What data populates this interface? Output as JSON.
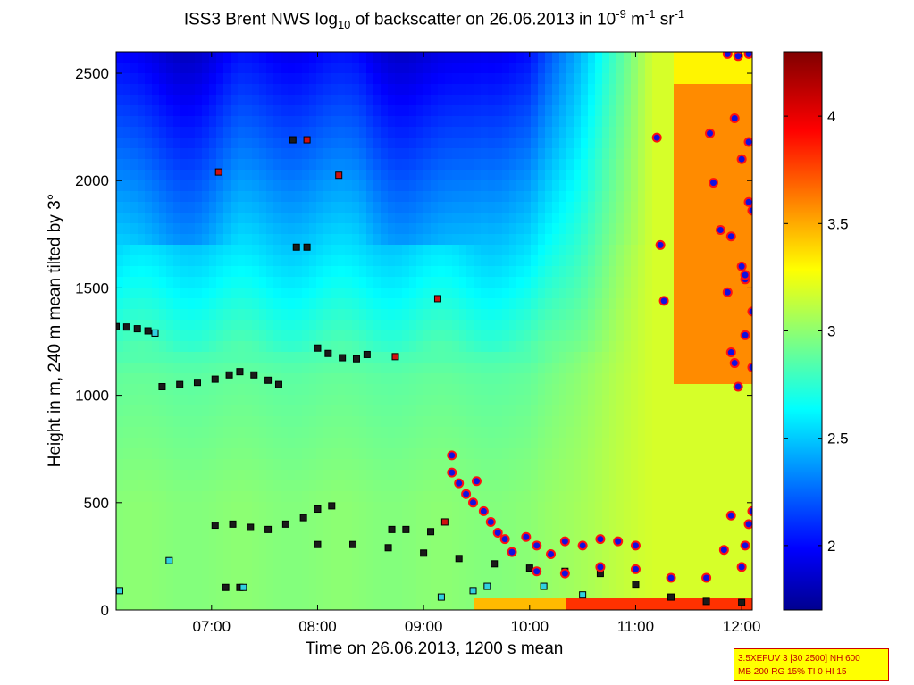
{
  "title": {
    "prefix": "ISS3 Brent NWS log",
    "sub": "10",
    "mid": " of backscatter on 26.06.2013 in 10",
    "sup1": "-9",
    "mid2": " m",
    "sup2": "-1",
    "mid3": " sr",
    "sup3": "-1"
  },
  "info_box": {
    "line1": "3.5XEFUV 3 [30 2500] NH 600",
    "line2": "MB 200 RG 15% TI 0 HI 15"
  },
  "chart_data": {
    "type": "heatmap",
    "xlabel": "Time on 26.06.2013, 1200 s mean",
    "ylabel": "Height in m, 240 m mean tilted by 3°",
    "xlim": [
      "06:06",
      "12:06"
    ],
    "ylim": [
      0,
      2600
    ],
    "x_ticks": [
      "07:00",
      "08:00",
      "09:00",
      "10:00",
      "11:00",
      "12:00"
    ],
    "y_ticks": [
      0,
      500,
      1000,
      1500,
      2000,
      2500
    ],
    "colorbar": {
      "range": [
        1.7,
        4.3
      ],
      "ticks": [
        2,
        2.5,
        3,
        3.5,
        4
      ],
      "colormap": "jet",
      "colors": [
        "#00008f",
        "#0000ff",
        "#00ffff",
        "#ffff00",
        "#ff0000",
        "#800000"
      ]
    },
    "field_description": "log10 backscatter: low (1.9-2.3) above 1500 m before 10:30, ~2.9 near 1000 m, ~3.2 from 10:30, ~3.6 above 1000 m after 11:20",
    "series": [
      {
        "marker": "square-dark",
        "points": [
          [
            "06:06",
            1320
          ],
          [
            "06:12",
            1318
          ],
          [
            "06:18",
            1310
          ],
          [
            "06:24",
            1300
          ],
          [
            "06:28",
            1290
          ],
          [
            "06:32",
            1040
          ],
          [
            "06:42",
            1050
          ],
          [
            "06:52",
            1060
          ],
          [
            "07:02",
            1075
          ],
          [
            "07:10",
            1095
          ],
          [
            "07:16",
            1110
          ],
          [
            "07:24",
            1095
          ],
          [
            "07:32",
            1070
          ],
          [
            "07:38",
            1050
          ],
          [
            "07:02",
            395
          ],
          [
            "07:12",
            400
          ],
          [
            "07:22",
            385
          ],
          [
            "07:32",
            375
          ],
          [
            "07:42",
            400
          ],
          [
            "07:52",
            430
          ],
          [
            "08:00",
            470
          ],
          [
            "08:08",
            485
          ],
          [
            "08:00",
            1220
          ],
          [
            "08:06",
            1195
          ],
          [
            "08:14",
            1175
          ],
          [
            "08:22",
            1170
          ],
          [
            "08:28",
            1190
          ],
          [
            "08:00",
            305
          ],
          [
            "08:20",
            305
          ],
          [
            "08:40",
            290
          ],
          [
            "09:00",
            265
          ],
          [
            "09:20",
            240
          ],
          [
            "09:40",
            215
          ],
          [
            "10:00",
            195
          ],
          [
            "10:20",
            180
          ],
          [
            "10:40",
            170
          ],
          [
            "11:00",
            120
          ],
          [
            "11:20",
            60
          ],
          [
            "11:40",
            40
          ],
          [
            "12:00",
            35
          ],
          [
            "08:42",
            375
          ],
          [
            "08:50",
            375
          ],
          [
            "09:04",
            365
          ],
          [
            "07:08",
            105
          ],
          [
            "07:16",
            105
          ],
          [
            "07:48",
            1690
          ],
          [
            "07:54",
            1690
          ],
          [
            "07:46",
            2190
          ]
        ]
      },
      {
        "marker": "square-red",
        "points": [
          [
            "07:04",
            2040
          ],
          [
            "07:54",
            2190
          ],
          [
            "08:12",
            2025
          ],
          [
            "09:08",
            1450
          ],
          [
            "08:44",
            1180
          ],
          [
            "09:12",
            410
          ]
        ]
      },
      {
        "marker": "square-cyan",
        "points": [
          [
            "06:08",
            90
          ],
          [
            "06:28",
            1290
          ],
          [
            "06:36",
            230
          ],
          [
            "07:18",
            105
          ],
          [
            "09:10",
            60
          ],
          [
            "09:28",
            90
          ],
          [
            "09:36",
            110
          ],
          [
            "10:08",
            110
          ],
          [
            "10:30",
            70
          ]
        ]
      },
      {
        "marker": "circle-blue-red",
        "points": [
          [
            "09:16",
            720
          ],
          [
            "09:16",
            640
          ],
          [
            "09:20",
            590
          ],
          [
            "09:24",
            540
          ],
          [
            "09:28",
            500
          ],
          [
            "09:30",
            600
          ],
          [
            "09:34",
            460
          ],
          [
            "09:38",
            410
          ],
          [
            "09:42",
            360
          ],
          [
            "09:46",
            330
          ],
          [
            "09:50",
            270
          ],
          [
            "09:58",
            340
          ],
          [
            "10:04",
            300
          ],
          [
            "10:12",
            260
          ],
          [
            "10:20",
            320
          ],
          [
            "10:30",
            300
          ],
          [
            "10:40",
            330
          ],
          [
            "10:50",
            320
          ],
          [
            "11:00",
            300
          ],
          [
            "10:04",
            180
          ],
          [
            "10:20",
            170
          ],
          [
            "10:40",
            200
          ],
          [
            "11:00",
            190
          ],
          [
            "11:20",
            150
          ],
          [
            "11:40",
            150
          ],
          [
            "12:00",
            200
          ],
          [
            "11:12",
            2200
          ],
          [
            "11:14",
            1700
          ],
          [
            "11:16",
            1440
          ],
          [
            "11:42",
            2220
          ],
          [
            "11:44",
            1990
          ],
          [
            "11:48",
            1770
          ],
          [
            "11:52",
            1480
          ],
          [
            "11:54",
            1740
          ],
          [
            "11:56",
            2290
          ],
          [
            "11:58",
            1040
          ],
          [
            "12:00",
            2100
          ],
          [
            "12:02",
            1540
          ],
          [
            "12:04",
            2180
          ],
          [
            "12:06",
            1860
          ],
          [
            "11:52",
            2590
          ],
          [
            "11:58",
            2580
          ],
          [
            "12:04",
            2590
          ],
          [
            "12:00",
            1600
          ],
          [
            "12:02",
            1280
          ],
          [
            "12:04",
            1900
          ],
          [
            "11:56",
            1150
          ],
          [
            "11:54",
            1200
          ],
          [
            "12:06",
            1130
          ],
          [
            "12:06",
            1390
          ],
          [
            "12:02",
            1560
          ],
          [
            "11:54",
            440
          ],
          [
            "12:04",
            400
          ],
          [
            "12:06",
            460
          ],
          [
            "12:02",
            300
          ],
          [
            "11:50",
            280
          ]
        ]
      }
    ]
  }
}
